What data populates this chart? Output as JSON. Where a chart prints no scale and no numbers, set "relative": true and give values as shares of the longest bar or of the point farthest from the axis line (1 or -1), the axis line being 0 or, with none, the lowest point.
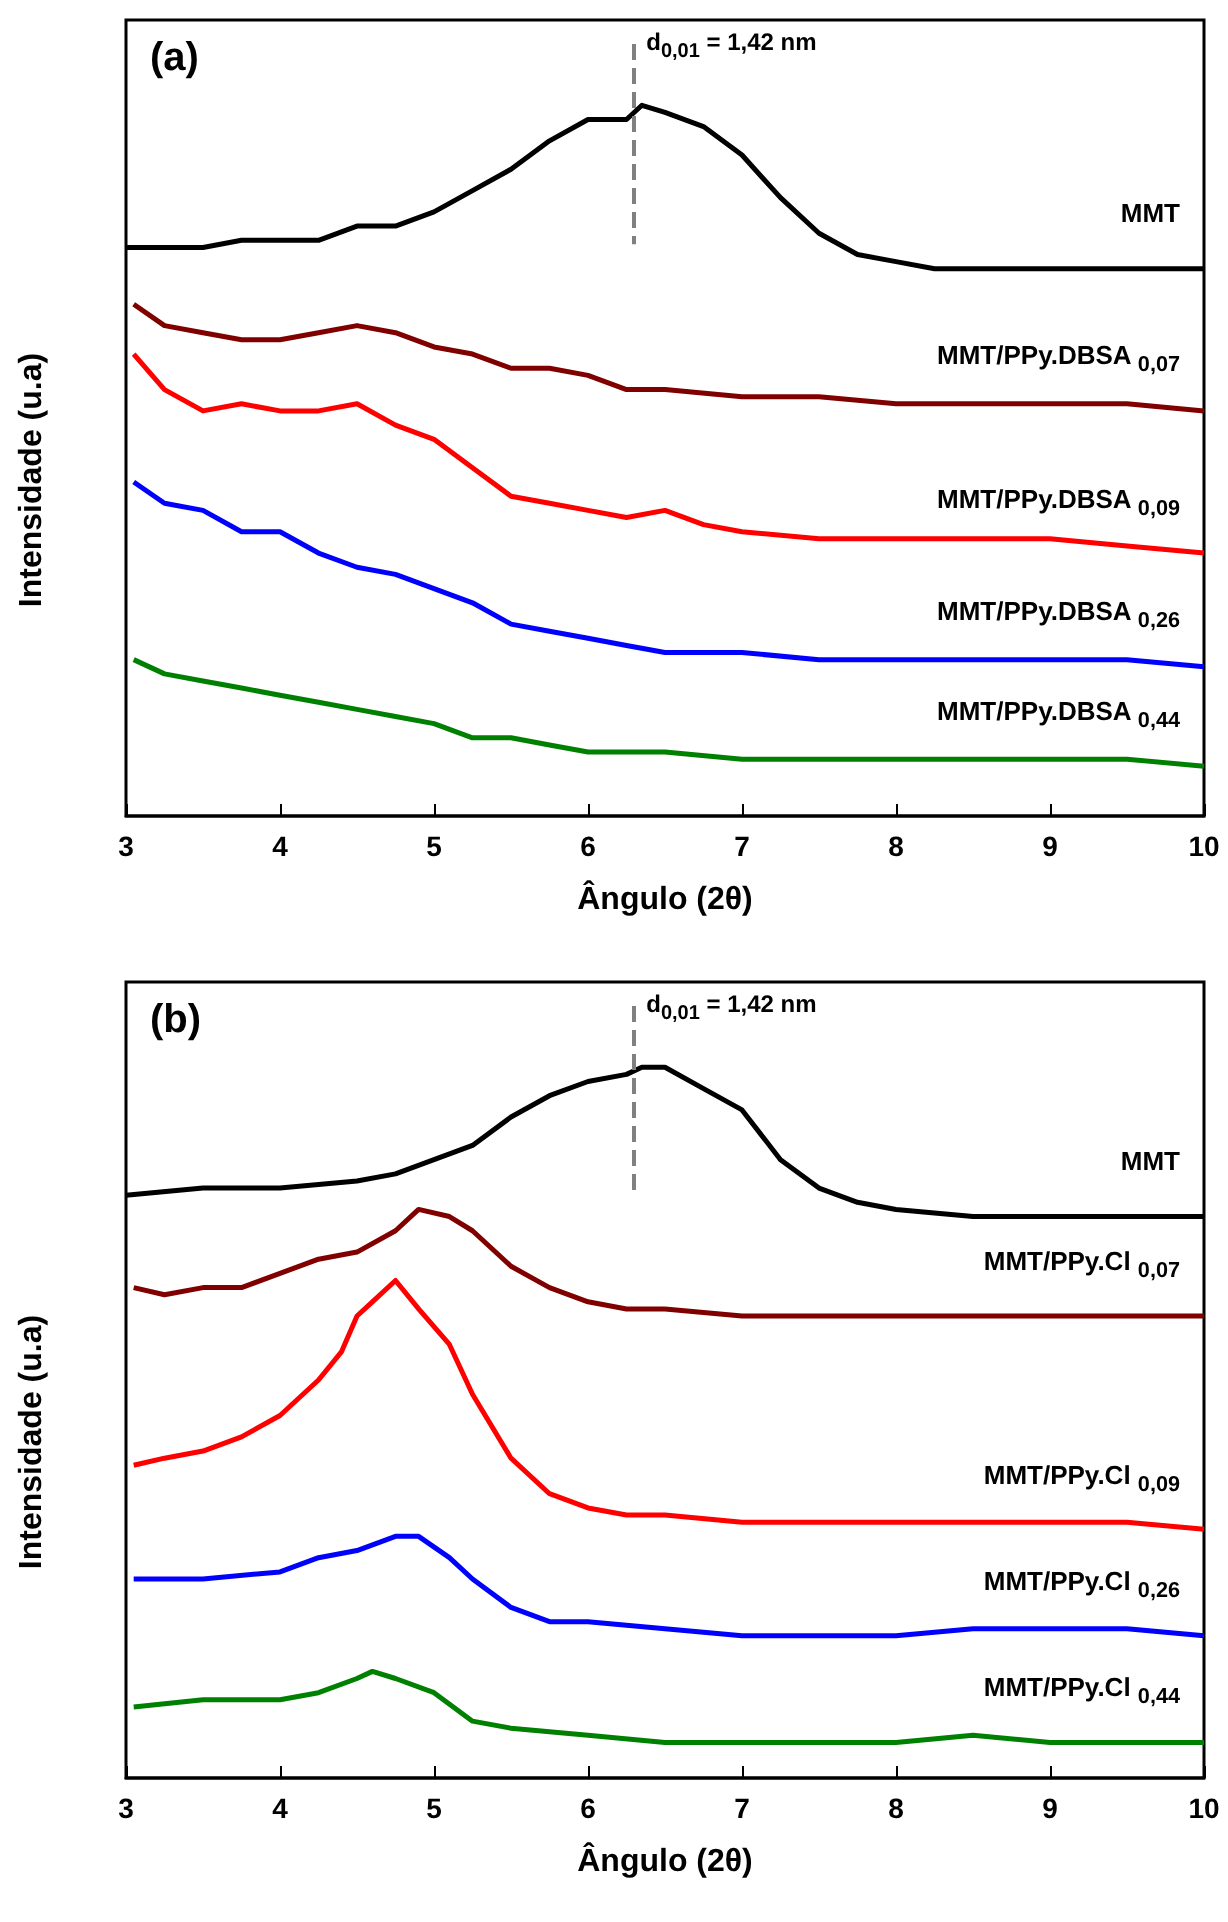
{
  "chart_data": [
    {
      "type": "line",
      "title": "(a)",
      "xlabel": "Ângulo (2θ)",
      "ylabel": "Intensidade (u.a)",
      "relative": true,
      "xlim": [
        3,
        10
      ],
      "xticks": [
        3,
        4,
        5,
        6,
        7,
        8,
        9,
        10
      ],
      "legend": false,
      "grid": false,
      "marker": "none",
      "line_style": "solid",
      "annotations": [
        "d$_{0,01}$ = 1,42 nm"
      ],
      "ref_lines": [
        {
          "axis": "x",
          "value": 6.3,
          "color": "#808080",
          "line_style": "dashed"
        }
      ],
      "series": [
        {
          "name": "MMT",
          "color": "#000000",
          "x": [
            3,
            3.25,
            3.5,
            3.75,
            4,
            4.25,
            4.5,
            4.75,
            5,
            5.25,
            5.5,
            5.75,
            6,
            6.25,
            6.35,
            6.5,
            6.75,
            7,
            7.25,
            7.5,
            7.75,
            8,
            8.25,
            8.5,
            8.75,
            9,
            9.25,
            9.5,
            9.75,
            10
          ],
          "values": [
            0.8,
            0.8,
            0.8,
            0.81,
            0.81,
            0.81,
            0.83,
            0.83,
            0.85,
            0.88,
            0.91,
            0.95,
            0.98,
            0.98,
            1,
            0.99,
            0.97,
            0.93,
            0.87,
            0.82,
            0.79,
            0.78,
            0.77,
            0.77,
            0.77,
            0.77,
            0.77,
            0.77,
            0.77,
            0.77
          ]
        },
        {
          "name": "MMT/PPy.DBSA $_{0,07}$",
          "color": "#800000",
          "x": [
            3.05,
            3.25,
            3.5,
            3.75,
            4,
            4.25,
            4.5,
            4.75,
            5,
            5.25,
            5.5,
            5.75,
            6,
            6.25,
            6.5,
            7,
            7.5,
            8,
            8.5,
            9,
            9.5,
            10
          ],
          "values": [
            0.72,
            0.69,
            0.68,
            0.67,
            0.67,
            0.68,
            0.69,
            0.68,
            0.66,
            0.65,
            0.63,
            0.63,
            0.62,
            0.6,
            0.6,
            0.59,
            0.59,
            0.58,
            0.58,
            0.58,
            0.58,
            0.57
          ]
        },
        {
          "name": "MMT/PPy.DBSA $_{0,09}$",
          "color": "#ff0000",
          "x": [
            3.05,
            3.25,
            3.5,
            3.75,
            4,
            4.25,
            4.5,
            4.75,
            5,
            5.25,
            5.5,
            5.75,
            6,
            6.25,
            6.5,
            6.75,
            7,
            7.5,
            8,
            8.5,
            9,
            9.5,
            10
          ],
          "values": [
            0.65,
            0.6,
            0.57,
            0.58,
            0.57,
            0.57,
            0.58,
            0.55,
            0.53,
            0.49,
            0.45,
            0.44,
            0.43,
            0.42,
            0.43,
            0.41,
            0.4,
            0.39,
            0.39,
            0.39,
            0.39,
            0.38,
            0.37
          ]
        },
        {
          "name": "MMT/PPy.DBSA $_{0,26}$",
          "color": "#0000ff",
          "x": [
            3.05,
            3.25,
            3.5,
            3.75,
            4,
            4.25,
            4.5,
            4.75,
            5,
            5.25,
            5.5,
            5.75,
            6,
            6.25,
            6.5,
            7,
            7.5,
            8,
            8.5,
            9,
            9.5,
            10
          ],
          "values": [
            0.47,
            0.44,
            0.43,
            0.4,
            0.4,
            0.37,
            0.35,
            0.34,
            0.32,
            0.3,
            0.27,
            0.26,
            0.25,
            0.24,
            0.23,
            0.23,
            0.22,
            0.22,
            0.22,
            0.22,
            0.22,
            0.21
          ]
        },
        {
          "name": "MMT/PPy.DBSA $_{0,44}$",
          "color": "#008000",
          "x": [
            3.05,
            3.25,
            3.5,
            3.75,
            4,
            4.25,
            4.5,
            4.75,
            5,
            5.25,
            5.5,
            5.75,
            6,
            6.5,
            7,
            7.5,
            8,
            8.5,
            9,
            9.5,
            10
          ],
          "values": [
            0.22,
            0.2,
            0.19,
            0.18,
            0.17,
            0.16,
            0.15,
            0.14,
            0.13,
            0.11,
            0.11,
            0.1,
            0.09,
            0.09,
            0.08,
            0.08,
            0.08,
            0.08,
            0.08,
            0.08,
            0.07
          ]
        }
      ]
    },
    {
      "type": "line",
      "title": "(b)",
      "xlabel": "Ângulo (2θ)",
      "ylabel": "Intensidade (u.a)",
      "relative": true,
      "xlim": [
        3,
        10
      ],
      "xticks": [
        3,
        4,
        5,
        6,
        7,
        8,
        9,
        10
      ],
      "legend": false,
      "grid": false,
      "marker": "none",
      "line_style": "solid",
      "annotations": [
        "d$_{0,01}$ = 1,42 nm"
      ],
      "ref_lines": [
        {
          "axis": "x",
          "value": 6.3,
          "color": "#808080",
          "line_style": "dashed"
        }
      ],
      "series": [
        {
          "name": "MMT",
          "color": "#000000",
          "x": [
            3,
            3.5,
            4,
            4.5,
            4.75,
            5,
            5.25,
            5.5,
            5.75,
            6,
            6.25,
            6.35,
            6.5,
            6.75,
            7,
            7.25,
            7.5,
            7.75,
            8,
            8.5,
            9,
            9.5,
            10
          ],
          "values": [
            0.82,
            0.83,
            0.83,
            0.84,
            0.85,
            0.87,
            0.89,
            0.93,
            0.96,
            0.98,
            0.99,
            1,
            1,
            0.97,
            0.94,
            0.87,
            0.83,
            0.81,
            0.8,
            0.79,
            0.79,
            0.79,
            0.79
          ]
        },
        {
          "name": "MMT/PPy.Cl $_{0,07}$",
          "color": "#800000",
          "x": [
            3.05,
            3.25,
            3.5,
            3.75,
            4,
            4.25,
            4.5,
            4.75,
            4.9,
            5.1,
            5.25,
            5.5,
            5.75,
            6,
            6.25,
            6.5,
            7,
            7.5,
            8,
            8.5,
            9,
            9.5,
            10
          ],
          "values": [
            0.69,
            0.68,
            0.69,
            0.69,
            0.71,
            0.73,
            0.74,
            0.77,
            0.8,
            0.79,
            0.77,
            0.72,
            0.69,
            0.67,
            0.66,
            0.66,
            0.65,
            0.65,
            0.65,
            0.65,
            0.65,
            0.65,
            0.65
          ]
        },
        {
          "name": "MMT/PPy.Cl $_{0,09}$",
          "color": "#ff0000",
          "x": [
            3.05,
            3.25,
            3.5,
            3.75,
            4,
            4.25,
            4.4,
            4.5,
            4.6,
            4.75,
            4.9,
            5.1,
            5.25,
            5.5,
            5.75,
            6,
            6.25,
            6.5,
            7,
            7.5,
            8,
            8.5,
            9,
            9.5,
            10
          ],
          "values": [
            0.44,
            0.45,
            0.46,
            0.48,
            0.51,
            0.56,
            0.6,
            0.65,
            0.67,
            0.7,
            0.66,
            0.61,
            0.54,
            0.45,
            0.4,
            0.38,
            0.37,
            0.37,
            0.36,
            0.36,
            0.36,
            0.36,
            0.36,
            0.36,
            0.35
          ]
        },
        {
          "name": "MMT/PPy.Cl $_{0,26}$",
          "color": "#0000ff",
          "x": [
            3.05,
            3.5,
            4,
            4.25,
            4.5,
            4.75,
            4.9,
            5.1,
            5.25,
            5.5,
            5.75,
            6,
            6.5,
            7,
            7.5,
            8,
            8.5,
            9,
            9.5,
            10
          ],
          "values": [
            0.28,
            0.28,
            0.29,
            0.31,
            0.32,
            0.34,
            0.34,
            0.31,
            0.28,
            0.24,
            0.22,
            0.22,
            0.21,
            0.2,
            0.2,
            0.2,
            0.21,
            0.21,
            0.21,
            0.2
          ]
        },
        {
          "name": "MMT/PPy.Cl $_{0,44}$",
          "color": "#008000",
          "x": [
            3.05,
            3.5,
            4,
            4.25,
            4.5,
            4.6,
            4.75,
            5,
            5.25,
            5.5,
            6,
            6.5,
            7,
            7.5,
            8,
            8.5,
            9,
            9.5,
            10
          ],
          "values": [
            0.1,
            0.11,
            0.11,
            0.12,
            0.14,
            0.15,
            0.14,
            0.12,
            0.08,
            0.07,
            0.06,
            0.05,
            0.05,
            0.05,
            0.05,
            0.06,
            0.05,
            0.05,
            0.05
          ]
        }
      ]
    }
  ]
}
